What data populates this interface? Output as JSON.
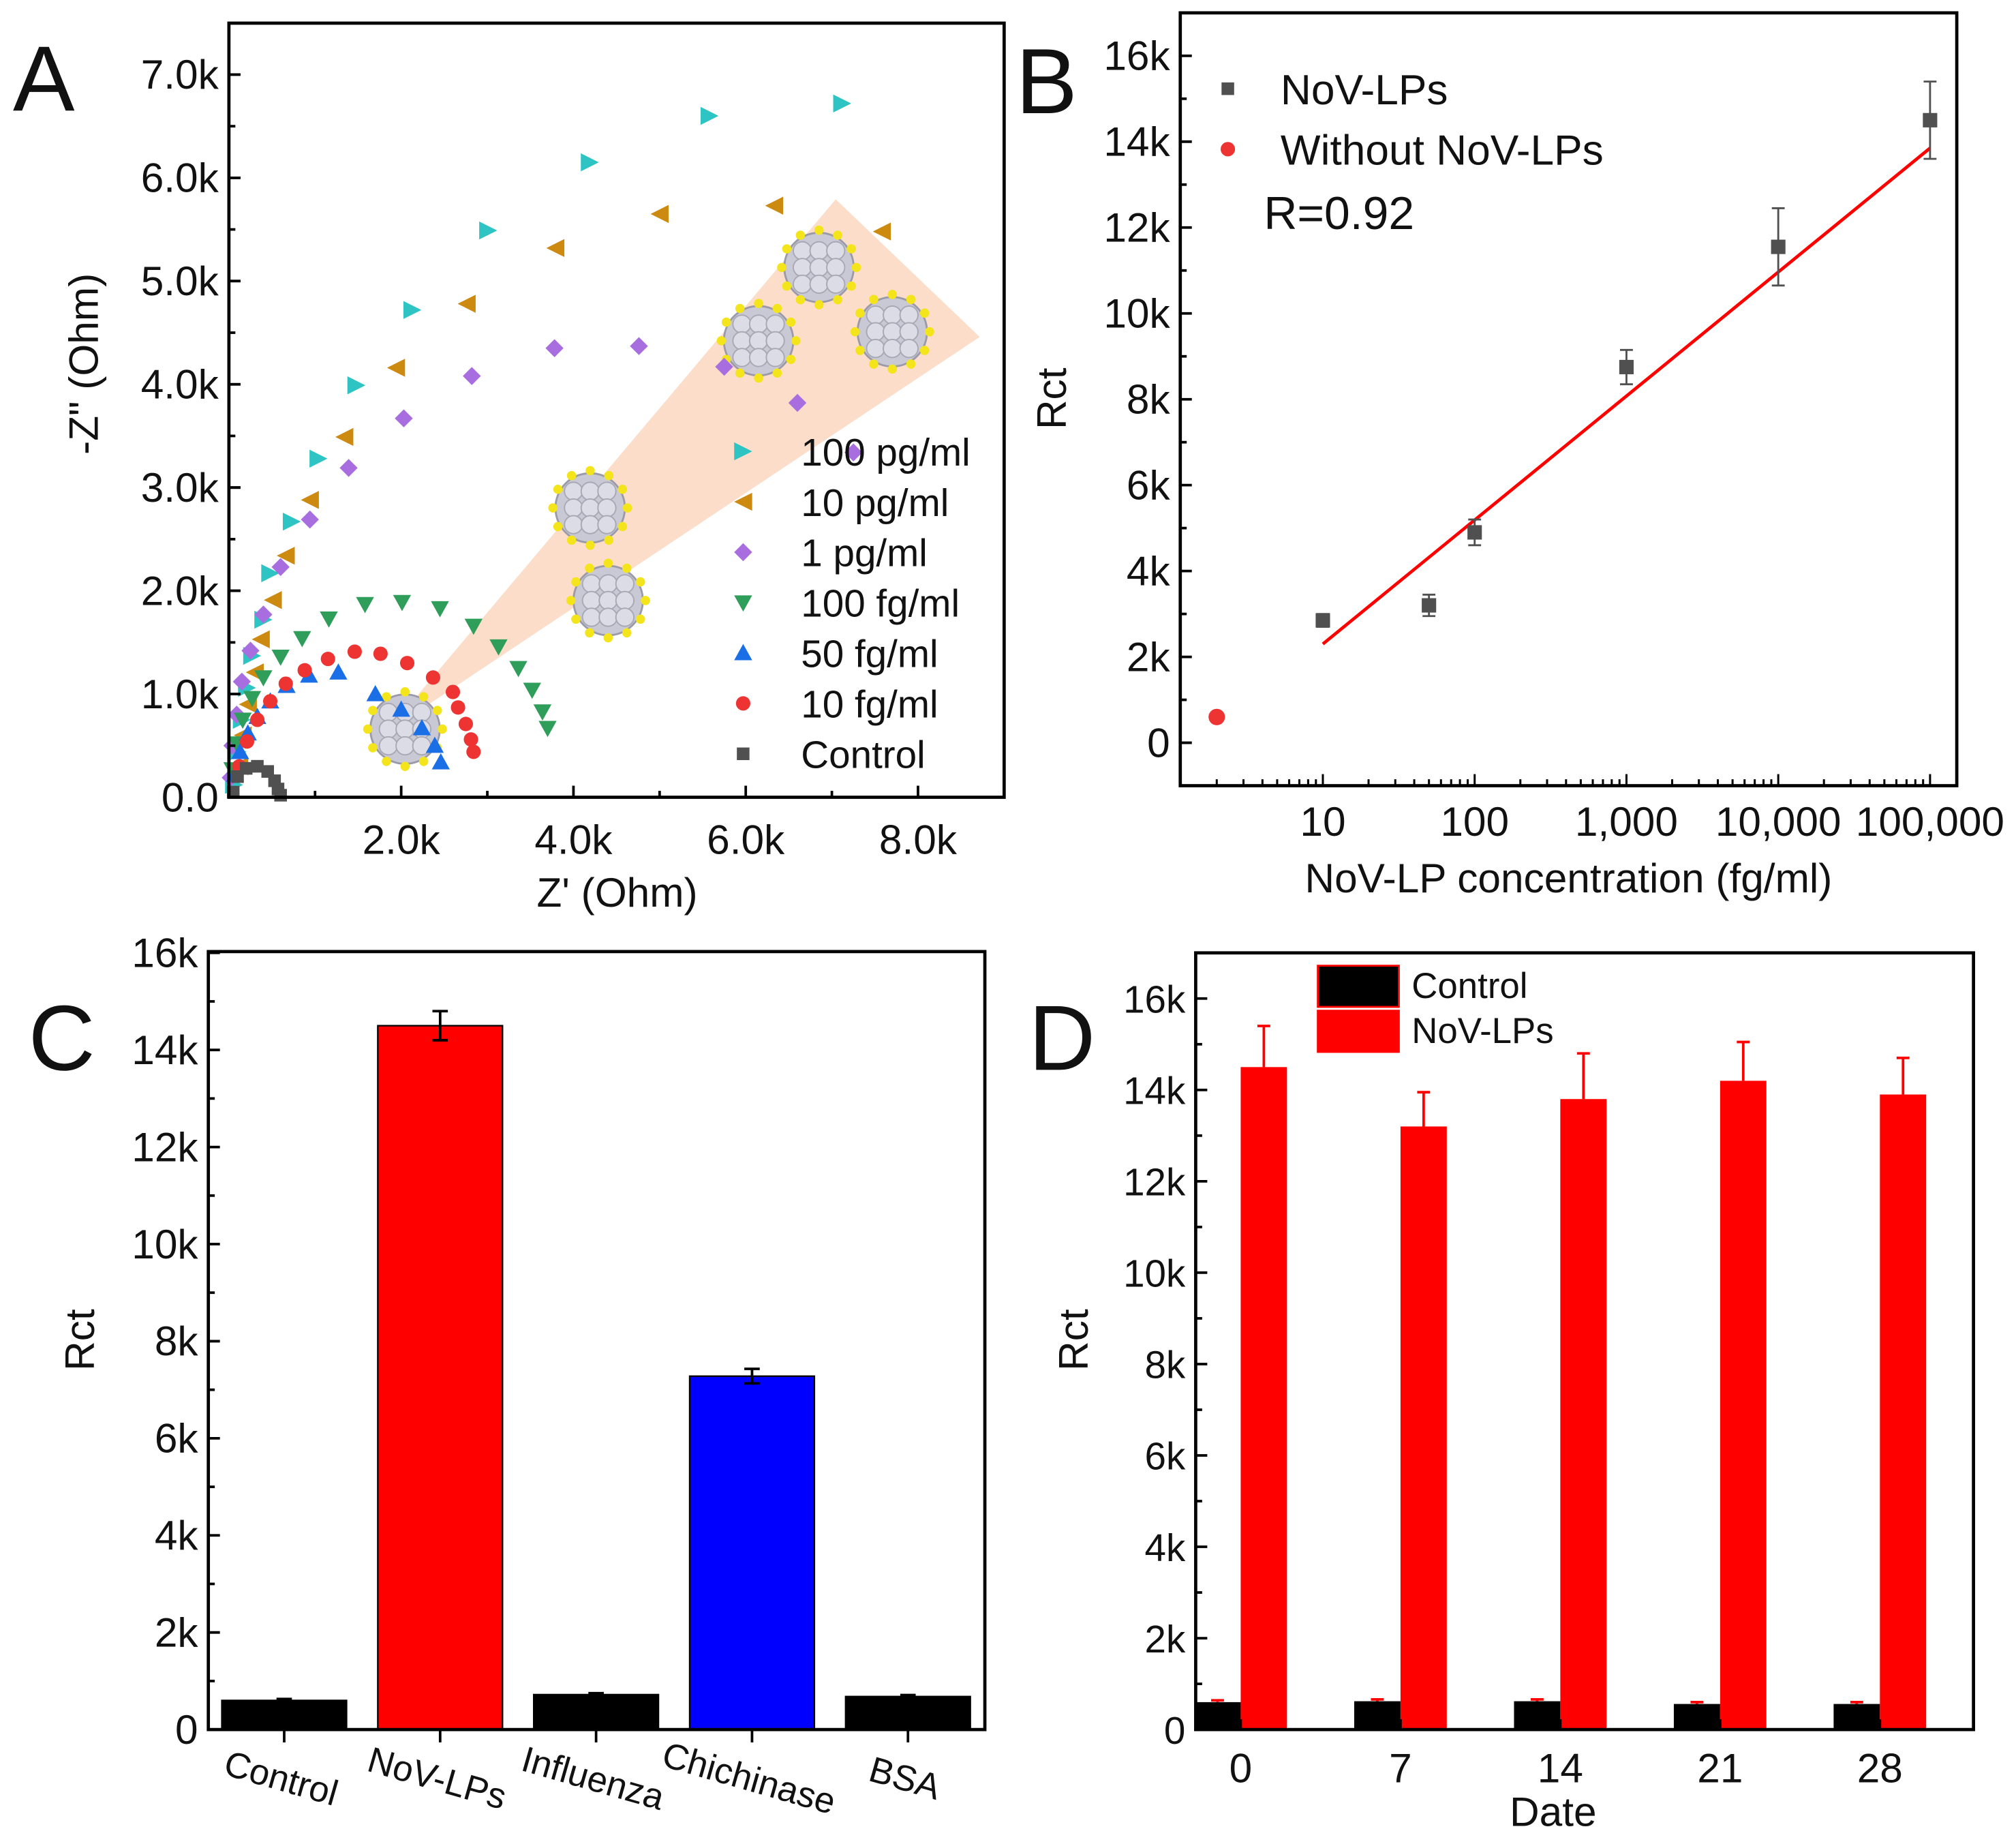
{
  "chart_data": [
    {
      "panel": "A",
      "type": "scatter",
      "xlabel": "Z' (Ohm)",
      "ylabel": "-Z\" (Ohm)",
      "xlim": [
        0,
        9000
      ],
      "ylim": [
        0,
        7500
      ],
      "xticks": [
        {
          "v": 2000,
          "label": "2.0k"
        },
        {
          "v": 4000,
          "label": "4.0k"
        },
        {
          "v": 6000,
          "label": "6.0k"
        },
        {
          "v": 8000,
          "label": "8.0k"
        }
      ],
      "yticks": [
        {
          "v": 0,
          "label": "0.0"
        },
        {
          "v": 1000,
          "label": "1.0k"
        },
        {
          "v": 2000,
          "label": "2.0k"
        },
        {
          "v": 3000,
          "label": "3.0k"
        },
        {
          "v": 4000,
          "label": "4.0k"
        },
        {
          "v": 5000,
          "label": "5.0k"
        },
        {
          "v": 6000,
          "label": "6.0k"
        },
        {
          "v": 7000,
          "label": "7.0k"
        }
      ],
      "legend_position": "right",
      "series": [
        {
          "name": "100 pg/ml",
          "marker": "triangle-right",
          "color": "#2ec4c4",
          "x": [
            7120,
            5580,
            4190,
            3010,
            2130,
            1480,
            1040,
            730,
            480,
            400,
            270,
            210,
            150,
            100,
            60
          ],
          "y": [
            6720,
            6600,
            6150,
            5490,
            4720,
            3990,
            3280,
            2670,
            2170,
            1720,
            1370,
            1060,
            750,
            440,
            120
          ]
        },
        {
          "name": "10 pg/ml",
          "marker": "triangle-left",
          "color": "#cc8a10",
          "x": [
            7580,
            6330,
            5000,
            3790,
            2760,
            1940,
            1340,
            940,
            660,
            510,
            370,
            300,
            220,
            160,
            120
          ],
          "y": [
            5480,
            5730,
            5650,
            5320,
            4780,
            4160,
            3490,
            2880,
            2340,
            1910,
            1530,
            1210,
            900,
            600,
            300
          ]
        },
        {
          "name": "1 pg/ml",
          "marker": "diamond",
          "color": "#a86ee0",
          "x": [
            7250,
            6600,
            5750,
            4760,
            3780,
            2820,
            2030,
            1390,
            940,
            600,
            400,
            250,
            150,
            90,
            40,
            20
          ],
          "y": [
            3340,
            3820,
            4170,
            4370,
            4350,
            4080,
            3670,
            3190,
            2690,
            2230,
            1770,
            1420,
            1120,
            800,
            500,
            190
          ]
        },
        {
          "name": "100 fg/ml",
          "marker": "triangle-down",
          "color": "#2e9e5a",
          "x": [
            3700,
            3640,
            3520,
            3360,
            3130,
            2840,
            2450,
            2010,
            1580,
            1160,
            850,
            600,
            400,
            270,
            160,
            90,
            40
          ],
          "y": [
            670,
            830,
            1040,
            1250,
            1460,
            1660,
            1830,
            1890,
            1870,
            1730,
            1540,
            1360,
            1160,
            960,
            750,
            520,
            270
          ]
        },
        {
          "name": "50 fg/ml",
          "marker": "triangle-up",
          "color": "#1a6ee6",
          "x": [
            2460,
            2390,
            2240,
            2000,
            1700,
            1270,
            930,
            670,
            480,
            330,
            220,
            130,
            70
          ],
          "y": [
            340,
            500,
            670,
            850,
            1000,
            1210,
            1180,
            1080,
            930,
            780,
            620,
            440,
            220
          ]
        },
        {
          "name": "10 fg/ml",
          "marker": "circle",
          "color": "#ee3333",
          "x": [
            2840,
            2810,
            2750,
            2660,
            2600,
            2370,
            2070,
            1760,
            1460,
            1150,
            880,
            660,
            480,
            330,
            210,
            120
          ],
          "y": [
            440,
            560,
            710,
            870,
            1020,
            1160,
            1300,
            1390,
            1410,
            1340,
            1230,
            1100,
            930,
            750,
            540,
            300
          ]
        },
        {
          "name": "Control",
          "marker": "square",
          "color": "#505050",
          "x": [
            50,
            100,
            200,
            330,
            450,
            530,
            570,
            600
          ],
          "y": [
            50,
            200,
            280,
            300,
            250,
            160,
            80,
            20
          ]
        }
      ]
    },
    {
      "panel": "B",
      "type": "scatter",
      "xlabel": "NoV-LP concentration (fg/ml)",
      "ylabel": "Rct",
      "xscale": "log",
      "xlim": [
        1.15,
        150000
      ],
      "ylim": [
        -1000,
        17000
      ],
      "xticks": [
        {
          "v": 10,
          "label": "10"
        },
        {
          "v": 100,
          "label": "100"
        },
        {
          "v": 1000,
          "label": "1,000"
        },
        {
          "v": 10000,
          "label": "10,000"
        },
        {
          "v": 100000,
          "label": "100,000"
        }
      ],
      "yticks": [
        {
          "v": 0,
          "label": "0"
        },
        {
          "v": 2000,
          "label": "2k"
        },
        {
          "v": 4000,
          "label": "4k"
        },
        {
          "v": 6000,
          "label": "6k"
        },
        {
          "v": 8000,
          "label": "8k"
        },
        {
          "v": 10000,
          "label": "10k"
        },
        {
          "v": 12000,
          "label": "12k"
        },
        {
          "v": 14000,
          "label": "14k"
        },
        {
          "v": 16000,
          "label": "16k"
        }
      ],
      "legend_position": "top-left",
      "annotation": "R=0.92",
      "series": [
        {
          "name": "NoV-LPs",
          "marker": "square",
          "color": "#505050",
          "x": [
            10,
            50,
            100,
            1000,
            10000,
            100000
          ],
          "y": [
            2850,
            3200,
            4900,
            8750,
            11550,
            14500
          ],
          "err": [
            150,
            250,
            300,
            400,
            900,
            900
          ]
        },
        {
          "name": "Without NoV-LPs",
          "marker": "circle",
          "color": "#ee3333",
          "x": [
            2
          ],
          "y": [
            600
          ]
        }
      ],
      "fit": {
        "color": "#ff0000",
        "x": [
          10,
          100000
        ],
        "y": [
          2300,
          13850
        ]
      }
    },
    {
      "panel": "C",
      "type": "bar",
      "ylabel": "Rct",
      "ylim": [
        0,
        16000
      ],
      "yticks": [
        {
          "v": 0,
          "label": "0"
        },
        {
          "v": 2000,
          "label": "2k"
        },
        {
          "v": 4000,
          "label": "4k"
        },
        {
          "v": 6000,
          "label": "6k"
        },
        {
          "v": 8000,
          "label": "8k"
        },
        {
          "v": 10000,
          "label": "10k"
        },
        {
          "v": 12000,
          "label": "12k"
        },
        {
          "v": 14000,
          "label": "14k"
        },
        {
          "v": 16000,
          "label": "16k"
        }
      ],
      "categories": [
        "Control",
        "NoV-LPs",
        "Influenza",
        "Chichinase",
        "BSA"
      ],
      "values": [
        600,
        14500,
        720,
        7280,
        680
      ],
      "err": [
        30,
        300,
        30,
        150,
        30
      ],
      "colors": [
        "#000000",
        "#ff0000",
        "#000000",
        "#0000ff",
        "#000000"
      ]
    },
    {
      "panel": "D",
      "type": "bar",
      "xlabel": "Date",
      "ylabel": "Rct",
      "ylim": [
        0,
        17000
      ],
      "yticks": [
        {
          "v": 0,
          "label": "0"
        },
        {
          "v": 2000,
          "label": "2k"
        },
        {
          "v": 4000,
          "label": "4k"
        },
        {
          "v": 6000,
          "label": "6k"
        },
        {
          "v": 8000,
          "label": "8k"
        },
        {
          "v": 10000,
          "label": "10k"
        },
        {
          "v": 12000,
          "label": "12k"
        },
        {
          "v": 14000,
          "label": "14k"
        },
        {
          "v": 16000,
          "label": "16k"
        }
      ],
      "categories": [
        "0",
        "7",
        "14",
        "21",
        "28"
      ],
      "legend_position": "top-left",
      "series": [
        {
          "name": "Control",
          "color": "#000000",
          "values": [
            600,
            620,
            620,
            560,
            560
          ],
          "err": [
            40,
            40,
            40,
            40,
            40
          ]
        },
        {
          "name": "NoV-LPs",
          "color": "#ff0000",
          "values": [
            14500,
            13200,
            13800,
            14200,
            13900
          ],
          "err": [
            900,
            750,
            1000,
            850,
            800
          ]
        }
      ]
    }
  ]
}
